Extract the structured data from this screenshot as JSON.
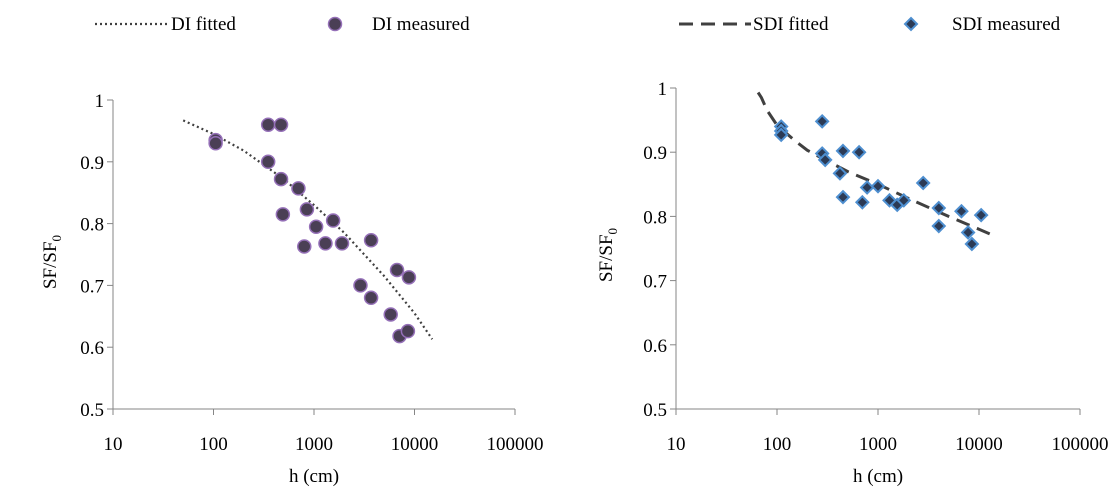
{
  "chart_data": [
    {
      "type": "scatter",
      "xlabel": "h (cm)",
      "ylabel_main": "SF/SF",
      "ylabel_sub": "0",
      "x_scale": "log",
      "xlim": [
        10,
        100000
      ],
      "ylim": [
        0.5,
        1
      ],
      "x_ticks": [
        10,
        100,
        1000,
        10000,
        100000
      ],
      "x_tick_labels": [
        "10",
        "100",
        "1000",
        "10000",
        "100000"
      ],
      "y_ticks": [
        0.5,
        0.6,
        0.7,
        0.8,
        0.9,
        1
      ],
      "y_tick_labels": [
        "0.5",
        "0.6",
        "0.7",
        "0.8",
        "0.9",
        "1"
      ],
      "grid": false,
      "legend": {
        "placement": "top",
        "fitted_label": "DI fitted",
        "measured_label": "DI measured"
      },
      "series": [
        {
          "name": "DI fitted",
          "kind": "line",
          "style": "dotted",
          "color": "#404040",
          "x": [
            50,
            100,
            200,
            500,
            1000,
            2000,
            5000,
            10000,
            15000
          ],
          "y": [
            0.967,
            0.945,
            0.918,
            0.872,
            0.83,
            0.785,
            0.715,
            0.655,
            0.613
          ]
        },
        {
          "name": "DI measured",
          "kind": "points",
          "marker": "circle",
          "color": "#4a3f55",
          "edge_color": "#9570b8",
          "x": [
            105,
            105,
            350,
            350,
            470,
            470,
            490,
            700,
            850,
            1050,
            800,
            1300,
            1550,
            1900,
            2900,
            3700,
            3700,
            5800,
            6700,
            7100,
            8600,
            8800
          ],
          "y": [
            0.935,
            0.93,
            0.96,
            0.9,
            0.96,
            0.872,
            0.815,
            0.857,
            0.823,
            0.795,
            0.763,
            0.768,
            0.805,
            0.768,
            0.7,
            0.68,
            0.773,
            0.653,
            0.725,
            0.618,
            0.626,
            0.713
          ]
        }
      ]
    },
    {
      "type": "scatter",
      "xlabel": "h (cm)",
      "ylabel_main": "SF/SF",
      "ylabel_sub": "0",
      "x_scale": "log",
      "xlim": [
        10,
        100000
      ],
      "ylim": [
        0.5,
        1
      ],
      "x_ticks": [
        10,
        100,
        1000,
        10000,
        100000
      ],
      "x_tick_labels": [
        "10",
        "100",
        "1000",
        "10000",
        "100000"
      ],
      "y_ticks": [
        0.5,
        0.6,
        0.7,
        0.8,
        0.9,
        1
      ],
      "y_tick_labels": [
        "0.5",
        "0.6",
        "0.7",
        "0.8",
        "0.9",
        "1"
      ],
      "grid": false,
      "legend": {
        "placement": "top",
        "fitted_label": "SDI fitted",
        "measured_label": "SDI measured"
      },
      "series": [
        {
          "name": "SDI fitted",
          "kind": "line",
          "style": "dashed",
          "color": "#404040",
          "x": [
            65,
            70,
            80,
            100,
            150,
            200,
            300,
            500,
            1000,
            2000,
            5000,
            10000,
            14000
          ],
          "y": [
            0.993,
            0.985,
            0.965,
            0.942,
            0.918,
            0.903,
            0.888,
            0.87,
            0.85,
            0.828,
            0.8,
            0.78,
            0.77
          ]
        },
        {
          "name": "SDI measured",
          "kind": "points",
          "marker": "diamond",
          "color": "#2b3a55",
          "edge_color": "#4e8fd0",
          "x": [
            110,
            110,
            110,
            280,
            280,
            300,
            420,
            450,
            450,
            650,
            700,
            780,
            1000,
            1300,
            1550,
            1800,
            2800,
            4000,
            4000,
            6700,
            7800,
            8500,
            10500
          ],
          "y": [
            0.94,
            0.933,
            0.927,
            0.948,
            0.898,
            0.888,
            0.867,
            0.902,
            0.83,
            0.9,
            0.822,
            0.845,
            0.847,
            0.825,
            0.818,
            0.825,
            0.852,
            0.813,
            0.785,
            0.808,
            0.775,
            0.757,
            0.802
          ]
        }
      ]
    }
  ]
}
